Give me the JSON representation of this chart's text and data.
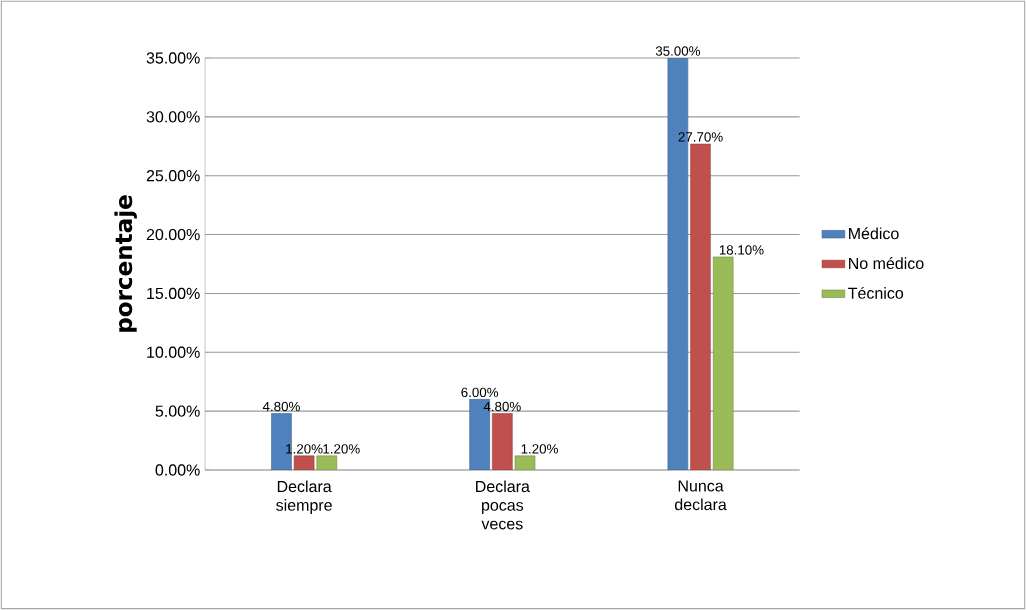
{
  "chart_data": {
    "type": "bar",
    "ylabel": "porcentaje",
    "categories": [
      "Declara siempre",
      "Declara pocas veces",
      "Nunca declara"
    ],
    "series": [
      {
        "name": "Médico",
        "color": "#4f81bd",
        "values": [
          4.8,
          6.0,
          35.0
        ],
        "value_labels": [
          "4.80%",
          "6.00%",
          "35.00%"
        ]
      },
      {
        "name": "No médico",
        "color": "#c0504d",
        "values": [
          1.2,
          4.8,
          27.7
        ],
        "value_labels": [
          "1.20%",
          "4.80%",
          "27.70%"
        ]
      },
      {
        "name": "Técnico",
        "color": "#9bbb59",
        "values": [
          1.2,
          1.2,
          18.1
        ],
        "value_labels": [
          "1.20%",
          "1.20%",
          "18.10%"
        ]
      }
    ],
    "ylim": [
      0,
      35
    ],
    "yticks": [
      {
        "value": 0,
        "label": "0.00%"
      },
      {
        "value": 5,
        "label": "5.00%"
      },
      {
        "value": 10,
        "label": "10.00%"
      },
      {
        "value": 15,
        "label": "15.00%"
      },
      {
        "value": 20,
        "label": "20.00%"
      },
      {
        "value": 25,
        "label": "25.00%"
      },
      {
        "value": 30,
        "label": "30.00%"
      },
      {
        "value": 35,
        "label": "35.00%"
      }
    ],
    "grid": "y",
    "legend": "right"
  }
}
